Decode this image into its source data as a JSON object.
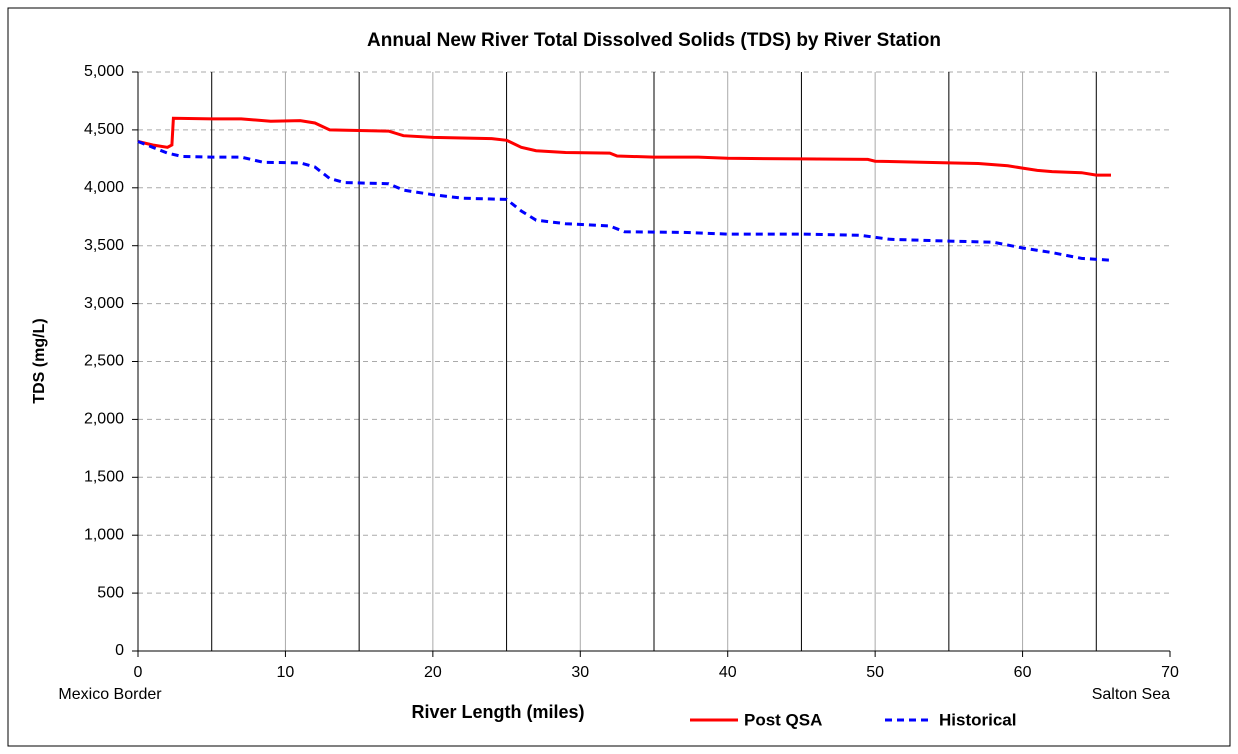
{
  "chart_data": {
    "type": "line",
    "title": "Annual New River Total Dissolved Solids (TDS) by River Station",
    "xlabel": "River Length (miles)",
    "ylabel": "TDS (mg/L)",
    "annotations": [
      {
        "text": "Mexico Border",
        "x": 0
      },
      {
        "text": "Salton Sea",
        "x": 70
      }
    ],
    "xlim": [
      0,
      70
    ],
    "xticks": [
      0,
      10,
      20,
      30,
      40,
      50,
      60,
      70
    ],
    "station_lines": [
      5,
      15,
      25,
      35,
      45,
      55,
      65
    ],
    "ylim": [
      0,
      5000
    ],
    "yticks": [
      0,
      500,
      {
        "value": 1000,
        "label": "1,000"
      },
      {
        "value": 1500,
        "label": "1,500"
      },
      {
        "value": 2000,
        "label": "2,000"
      },
      {
        "value": 2500,
        "label": "2,500"
      },
      {
        "value": 3000,
        "label": "3,000"
      },
      {
        "value": 3500,
        "label": "3,500"
      },
      {
        "value": 4000,
        "label": "4,000"
      },
      {
        "value": 4500,
        "label": "4,500"
      },
      {
        "value": 5000,
        "label": "5,000"
      }
    ],
    "grid": true,
    "legend": "bottom",
    "series": [
      {
        "name": "Post QSA",
        "color": "#ff0000",
        "dashed": false,
        "x": [
          0,
          1,
          2,
          2.3,
          2.4,
          5,
          7,
          9,
          11,
          12,
          13,
          17,
          18,
          20,
          24,
          25,
          26,
          27,
          29,
          32,
          32.5,
          35,
          38,
          40,
          45,
          49.5,
          50,
          55,
          57,
          59,
          60,
          61,
          62,
          64,
          65,
          66
        ],
        "values": [
          4400,
          4370,
          4350,
          4370,
          4600,
          4595,
          4595,
          4575,
          4580,
          4560,
          4500,
          4490,
          4450,
          4435,
          4425,
          4410,
          4350,
          4320,
          4305,
          4300,
          4275,
          4265,
          4265,
          4255,
          4250,
          4245,
          4230,
          4215,
          4210,
          4190,
          4170,
          4150,
          4140,
          4130,
          4110,
          4110
        ]
      },
      {
        "name": "Historical",
        "color": "#0000ff",
        "dashed": true,
        "x": [
          0,
          1,
          2,
          3,
          5,
          7,
          8.5,
          11,
          12,
          13,
          14,
          17,
          18,
          20,
          22,
          25,
          26,
          27,
          29,
          32,
          33,
          37,
          40,
          45,
          49,
          51,
          55,
          58,
          60,
          62,
          64,
          66
        ],
        "values": [
          4400,
          4350,
          4300,
          4270,
          4265,
          4265,
          4220,
          4215,
          4180,
          4080,
          4045,
          4035,
          3980,
          3940,
          3910,
          3900,
          3800,
          3720,
          3690,
          3670,
          3620,
          3615,
          3600,
          3600,
          3590,
          3555,
          3540,
          3530,
          3480,
          3440,
          3390,
          3375
        ]
      }
    ]
  }
}
